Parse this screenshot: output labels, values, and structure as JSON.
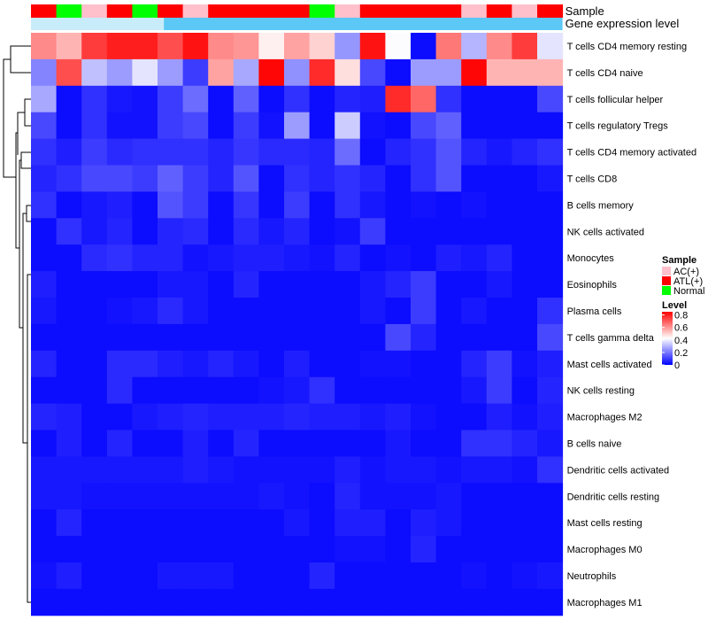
{
  "chart_data": {
    "type": "heatmap",
    "annotation_labels": [
      "Sample",
      "Gene expression level"
    ],
    "sample_legend": {
      "title": "Sample",
      "entries": [
        {
          "label": "AC(+)",
          "color": "#ffc0cb"
        },
        {
          "label": "ATL(+)",
          "color": "#ff0000"
        },
        {
          "label": "Normal",
          "color": "#00ff00"
        }
      ]
    },
    "level_legend": {
      "title": "Level",
      "ticks": [
        "0.8",
        "0.6",
        "0.4",
        "0.2",
        "0"
      ],
      "tick_values": [
        0.8,
        0.6,
        0.4,
        0.2,
        0
      ],
      "range": [
        0,
        0.85
      ],
      "colors": [
        "#0000ff",
        "#ffffff",
        "#ff0000"
      ]
    },
    "samples": [
      "ATL(+)",
      "Normal",
      "AC(+)",
      "ATL(+)",
      "Normal",
      "ATL(+)",
      "AC(+)",
      "ATL(+)",
      "ATL(+)",
      "ATL(+)",
      "ATL(+)",
      "Normal",
      "AC(+)",
      "ATL(+)",
      "ATL(+)",
      "ATL(+)",
      "ATL(+)",
      "AC(+)",
      "ATL(+)",
      "AC(+)",
      "ATL(+)"
    ],
    "gene_expression_level_color": "#5bc8f5",
    "gene_expression_light_color": "#c9ecfb",
    "rows": [
      "T cells CD4 memory resting",
      "T cells CD4 naive",
      "T cells follicular helper",
      "T cells regulatory  Tregs",
      "T cells CD4 memory activated",
      "T cells CD8",
      "B cells memory",
      "NK cells activated",
      "Monocytes",
      "Eosinophils",
      "Plasma cells",
      "T cells gamma delta",
      "Mast cells activated",
      "NK cells resting",
      "Macrophages M2",
      "B cells naive",
      "Dendritic cells activated",
      "Dendritic cells resting",
      "Mast cells resting",
      "Macrophages M0",
      "Neutrophils",
      "Macrophages M1"
    ],
    "values": [
      [
        0.62,
        0.55,
        0.75,
        0.8,
        0.8,
        0.72,
        0.82,
        0.62,
        0.6,
        0.45,
        0.58,
        0.5,
        0.25,
        0.82,
        0.42,
        0.02,
        0.65,
        0.3,
        0.62,
        0.75,
        0.38
      ],
      [
        0.22,
        0.72,
        0.32,
        0.26,
        0.38,
        0.26,
        0.1,
        0.58,
        0.28,
        0.84,
        0.24,
        0.78,
        0.48,
        0.12,
        0.02,
        0.26,
        0.26,
        0.84,
        0.55,
        0.55,
        0.55
      ],
      [
        0.28,
        0.02,
        0.08,
        0.04,
        0.03,
        0.1,
        0.18,
        0.02,
        0.16,
        0.02,
        0.08,
        0.02,
        0.06,
        0.05,
        0.78,
        0.68,
        0.08,
        0.02,
        0.02,
        0.02,
        0.12
      ],
      [
        0.12,
        0.02,
        0.08,
        0.03,
        0.03,
        0.1,
        0.12,
        0.02,
        0.1,
        0.03,
        0.26,
        0.02,
        0.34,
        0.03,
        0.02,
        0.12,
        0.16,
        0.02,
        0.02,
        0.02,
        0.02
      ],
      [
        0.08,
        0.05,
        0.1,
        0.07,
        0.08,
        0.08,
        0.08,
        0.06,
        0.09,
        0.07,
        0.07,
        0.06,
        0.18,
        0.02,
        0.06,
        0.08,
        0.14,
        0.06,
        0.04,
        0.06,
        0.08
      ],
      [
        0.06,
        0.08,
        0.12,
        0.12,
        0.1,
        0.16,
        0.1,
        0.06,
        0.14,
        0.02,
        0.08,
        0.06,
        0.08,
        0.06,
        0.02,
        0.08,
        0.14,
        0.02,
        0.02,
        0.02,
        0.04
      ],
      [
        0.08,
        0.02,
        0.04,
        0.05,
        0.02,
        0.14,
        0.1,
        0.02,
        0.09,
        0.02,
        0.1,
        0.02,
        0.08,
        0.04,
        0.02,
        0.03,
        0.02,
        0.03,
        0.02,
        0.02,
        0.02
      ],
      [
        0.02,
        0.08,
        0.04,
        0.06,
        0.02,
        0.06,
        0.07,
        0.02,
        0.07,
        0.04,
        0.06,
        0.02,
        0.03,
        0.1,
        0.02,
        0.02,
        0.02,
        0.02,
        0.02,
        0.02,
        0.02
      ],
      [
        0.02,
        0.02,
        0.07,
        0.08,
        0.06,
        0.06,
        0.03,
        0.04,
        0.05,
        0.05,
        0.04,
        0.03,
        0.06,
        0.02,
        0.03,
        0.02,
        0.05,
        0.04,
        0.06,
        0.02,
        0.02
      ],
      [
        0.05,
        0.02,
        0.02,
        0.02,
        0.02,
        0.04,
        0.04,
        0.02,
        0.06,
        0.02,
        0.02,
        0.02,
        0.02,
        0.04,
        0.06,
        0.1,
        0.02,
        0.02,
        0.04,
        0.02,
        0.02
      ],
      [
        0.04,
        0.02,
        0.02,
        0.03,
        0.04,
        0.07,
        0.04,
        0.02,
        0.02,
        0.02,
        0.02,
        0.02,
        0.02,
        0.04,
        0.02,
        0.1,
        0.02,
        0.04,
        0.02,
        0.02,
        0.08
      ],
      [
        0.02,
        0.02,
        0.02,
        0.02,
        0.02,
        0.02,
        0.02,
        0.02,
        0.02,
        0.02,
        0.02,
        0.02,
        0.02,
        0.02,
        0.12,
        0.06,
        0.02,
        0.02,
        0.02,
        0.02,
        0.12
      ],
      [
        0.06,
        0.02,
        0.02,
        0.07,
        0.07,
        0.05,
        0.04,
        0.06,
        0.04,
        0.02,
        0.05,
        0.02,
        0.02,
        0.03,
        0.03,
        0.02,
        0.02,
        0.06,
        0.1,
        0.03,
        0.05
      ],
      [
        0.02,
        0.02,
        0.02,
        0.07,
        0.02,
        0.02,
        0.02,
        0.02,
        0.02,
        0.03,
        0.04,
        0.08,
        0.02,
        0.02,
        0.02,
        0.02,
        0.02,
        0.04,
        0.1,
        0.02,
        0.06
      ],
      [
        0.06,
        0.05,
        0.02,
        0.02,
        0.04,
        0.05,
        0.06,
        0.05,
        0.05,
        0.05,
        0.06,
        0.05,
        0.05,
        0.04,
        0.05,
        0.03,
        0.02,
        0.02,
        0.05,
        0.03,
        0.05
      ],
      [
        0.02,
        0.05,
        0.02,
        0.06,
        0.02,
        0.02,
        0.05,
        0.02,
        0.06,
        0.02,
        0.02,
        0.02,
        0.02,
        0.02,
        0.04,
        0.02,
        0.02,
        0.08,
        0.08,
        0.06,
        0.04
      ],
      [
        0.04,
        0.04,
        0.04,
        0.04,
        0.04,
        0.04,
        0.05,
        0.04,
        0.03,
        0.03,
        0.03,
        0.03,
        0.05,
        0.03,
        0.04,
        0.04,
        0.03,
        0.04,
        0.04,
        0.03,
        0.08
      ],
      [
        0.04,
        0.04,
        0.03,
        0.03,
        0.03,
        0.03,
        0.03,
        0.03,
        0.03,
        0.04,
        0.03,
        0.02,
        0.06,
        0.03,
        0.03,
        0.03,
        0.04,
        0.02,
        0.02,
        0.02,
        0.02
      ],
      [
        0.02,
        0.06,
        0.02,
        0.02,
        0.02,
        0.02,
        0.02,
        0.02,
        0.02,
        0.02,
        0.04,
        0.02,
        0.05,
        0.05,
        0.02,
        0.05,
        0.04,
        0.02,
        0.02,
        0.02,
        0.02
      ],
      [
        0.02,
        0.02,
        0.02,
        0.02,
        0.02,
        0.02,
        0.02,
        0.02,
        0.02,
        0.02,
        0.02,
        0.02,
        0.03,
        0.03,
        0.02,
        0.06,
        0.02,
        0.02,
        0.02,
        0.02,
        0.02
      ],
      [
        0.03,
        0.05,
        0.02,
        0.02,
        0.02,
        0.04,
        0.04,
        0.04,
        0.02,
        0.02,
        0.02,
        0.06,
        0.02,
        0.02,
        0.02,
        0.02,
        0.02,
        0.03,
        0.02,
        0.03,
        0.04
      ],
      [
        0.02,
        0.02,
        0.02,
        0.02,
        0.02,
        0.02,
        0.02,
        0.02,
        0.02,
        0.02,
        0.02,
        0.02,
        0.02,
        0.02,
        0.02,
        0.02,
        0.02,
        0.02,
        0.02,
        0.02,
        0.02
      ]
    ]
  }
}
